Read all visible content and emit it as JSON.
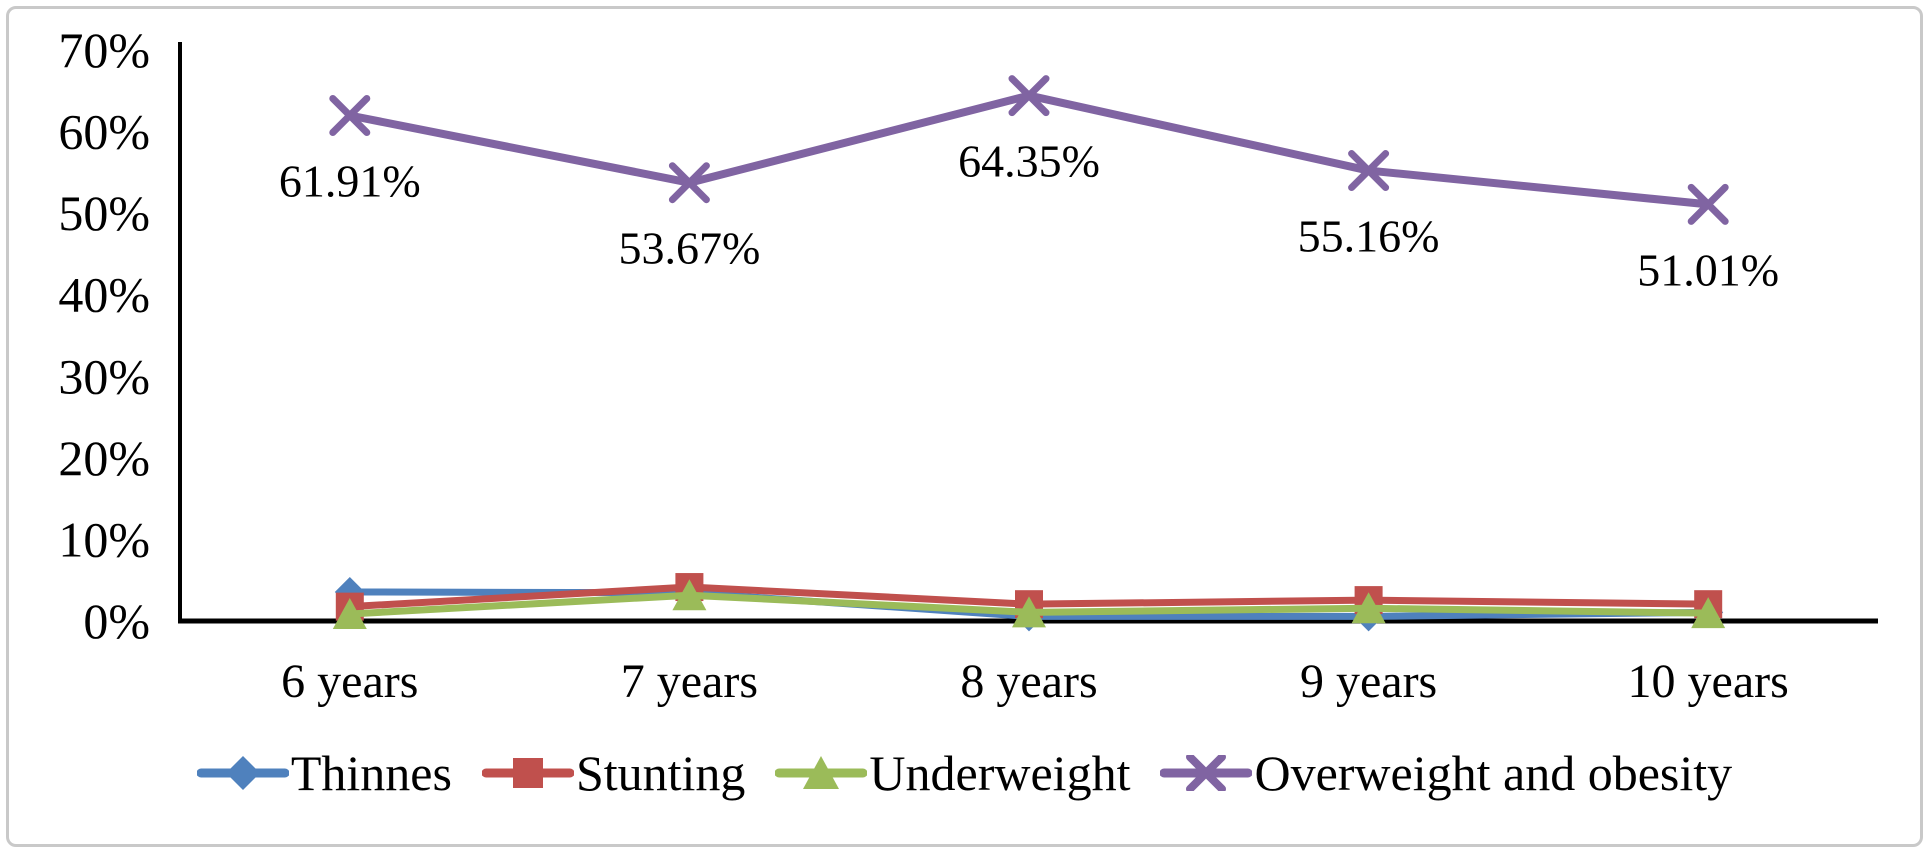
{
  "frame": {
    "border_color": "#c9c9c9",
    "background_color": "#ffffff",
    "text_color": "#000000",
    "axis_color": "#000000"
  },
  "chart_data": {
    "type": "line",
    "title": "",
    "categories": [
      "6 years",
      "7 years",
      "8 years",
      "9 years",
      "10 years"
    ],
    "x_axis": {
      "labels": [
        "6 years",
        "7 years",
        "8 years",
        "9 years",
        "10 years"
      ]
    },
    "y_axis": {
      "min": 0,
      "max": 70,
      "step": 10,
      "unit": "%",
      "tick_labels": [
        "0%",
        "10%",
        "20%",
        "30%",
        "40%",
        "50%",
        "60%",
        "70%"
      ]
    },
    "grid": false,
    "legend_position": "bottom",
    "series": [
      {
        "name": "Thinnes",
        "marker": "diamond",
        "color": "#4F81BD",
        "values": [
          3.5,
          3.4,
          0.5,
          0.5,
          1.0
        ]
      },
      {
        "name": "Stunting",
        "marker": "square",
        "color": "#C0504D",
        "values": [
          1.7,
          4.1,
          2.0,
          2.5,
          2.0
        ]
      },
      {
        "name": "Underweight",
        "marker": "triangle",
        "color": "#9BBB59",
        "values": [
          0.8,
          3.1,
          1.0,
          1.5,
          0.9
        ]
      },
      {
        "name": "Overweight and obesity",
        "marker": "x",
        "color": "#8064A2",
        "values": [
          61.91,
          53.67,
          64.35,
          55.16,
          51.01
        ],
        "data_labels": [
          "61.91%",
          "53.67%",
          "64.35%",
          "55.16%",
          "51.01%"
        ]
      }
    ]
  }
}
